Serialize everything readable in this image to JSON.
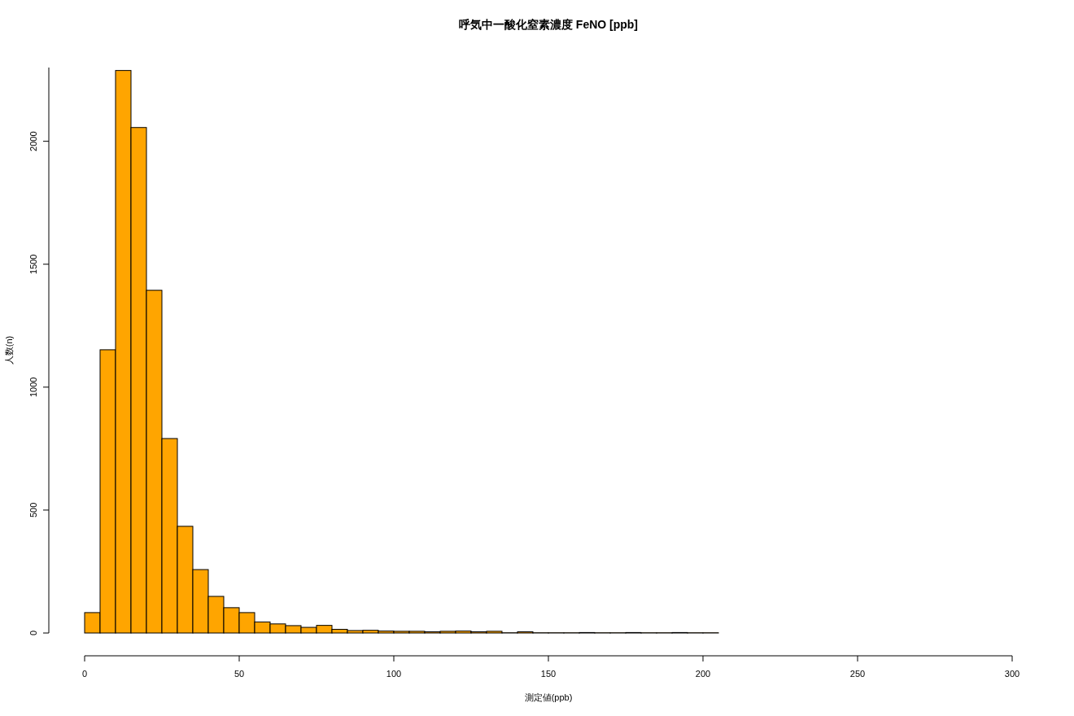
{
  "chart_data": {
    "type": "histogram",
    "title": "呼気中一酸化窒素濃度 FeNO [ppb]",
    "xlabel": "測定値(ppb)",
    "ylabel": "人数(n)",
    "bins": [
      0,
      5,
      10,
      15,
      20,
      25,
      30,
      35,
      40,
      45,
      50,
      55,
      60,
      65,
      70,
      75,
      80,
      85,
      90,
      95,
      100,
      105,
      110,
      115,
      120,
      125,
      130,
      135,
      140,
      145,
      150,
      155,
      160,
      165,
      170,
      175,
      180,
      185,
      190,
      195,
      200,
      205
    ],
    "values": [
      83,
      1152,
      2288,
      2056,
      1394,
      791,
      434,
      258,
      149,
      103,
      83,
      45,
      37,
      30,
      23,
      31,
      15,
      10,
      11,
      8,
      7,
      7,
      5,
      7,
      8,
      5,
      7,
      1,
      5,
      1,
      1,
      1,
      2,
      1,
      1,
      2,
      1,
      1,
      2,
      1,
      1
    ],
    "color": "#ffa500",
    "xlim": [
      0,
      300
    ],
    "xticks": [
      0,
      50,
      100,
      150,
      200,
      250,
      300
    ],
    "ylim": [
      0,
      2300
    ],
    "yticks": [
      0,
      500,
      1000,
      1500,
      2000
    ]
  }
}
